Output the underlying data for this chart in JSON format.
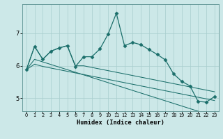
{
  "xlabel": "Humidex (Indice chaleur)",
  "background_color": "#cce8e8",
  "line_color": "#1a6e6a",
  "grid_color": "#a8cece",
  "xlim": [
    -0.5,
    23.5
  ],
  "ylim": [
    4.6,
    7.9
  ],
  "x_ticks": [
    0,
    1,
    2,
    3,
    4,
    5,
    6,
    7,
    8,
    9,
    10,
    11,
    12,
    13,
    14,
    15,
    16,
    17,
    18,
    19,
    20,
    21,
    22,
    23
  ],
  "y_ticks": [
    5,
    6,
    7
  ],
  "line1_y": [
    5.88,
    6.6,
    6.2,
    6.45,
    6.55,
    6.62,
    5.98,
    6.28,
    6.28,
    6.52,
    6.98,
    7.62,
    6.62,
    6.72,
    6.65,
    6.5,
    6.35,
    6.18,
    5.75,
    5.52,
    5.38,
    4.9,
    4.88,
    5.05
  ],
  "line2_y": [
    5.88,
    6.6,
    6.2,
    6.45,
    6.55,
    6.62,
    6.0,
    6.0,
    5.95,
    5.9,
    5.85,
    5.8,
    5.75,
    5.7,
    5.65,
    5.6,
    5.55,
    5.5,
    5.45,
    5.4,
    5.35,
    5.3,
    5.25,
    5.2
  ],
  "line3_y": [
    5.88,
    6.05,
    5.98,
    5.93,
    5.88,
    5.83,
    5.78,
    5.73,
    5.68,
    5.63,
    5.58,
    5.53,
    5.48,
    5.43,
    5.38,
    5.33,
    5.28,
    5.23,
    5.18,
    5.13,
    5.08,
    5.03,
    4.98,
    4.93
  ],
  "line4_y": [
    5.88,
    6.2,
    6.12,
    6.04,
    5.96,
    5.88,
    5.8,
    5.72,
    5.64,
    5.56,
    5.48,
    5.4,
    5.32,
    5.24,
    5.16,
    5.08,
    5.0,
    4.92,
    4.84,
    4.76,
    4.68,
    4.6,
    4.52,
    4.44
  ]
}
